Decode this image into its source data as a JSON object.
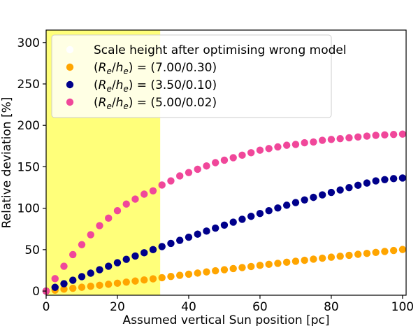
{
  "chart_data": {
    "type": "scatter",
    "xlabel": "Assumed vertical Sun position [pc]",
    "ylabel": "Relative deviation [%]",
    "xlim": [
      0,
      101
    ],
    "ylim": [
      -5,
      315
    ],
    "xticks": [
      0,
      20,
      40,
      60,
      80,
      100
    ],
    "yticks": [
      0,
      50,
      100,
      150,
      200,
      250,
      300
    ],
    "grid": false,
    "legend_position": "top-left",
    "highlight_region": {
      "x_range": [
        0,
        32
      ],
      "color": "#ffff7a"
    },
    "legend_title": "Scale height after optimising wrong model",
    "series": [
      {
        "name": "(Re/he) = (7.00/0.30)",
        "label_parts": [
          "(",
          "R",
          "e",
          "/",
          "h",
          "e",
          ") = (7.00/0.30)"
        ],
        "color": "#ffa500",
        "x": [
          0,
          2.5,
          5,
          7.5,
          10,
          12.5,
          15,
          17.5,
          20,
          22.5,
          25,
          27.5,
          30,
          32.5,
          35,
          37.5,
          40,
          42.5,
          45,
          47.5,
          50,
          52.5,
          55,
          57.5,
          60,
          62.5,
          65,
          67.5,
          70,
          72.5,
          75,
          77.5,
          80,
          82.5,
          85,
          87.5,
          90,
          92.5,
          95,
          97.5,
          100
        ],
        "y": [
          0,
          1.1,
          2.3,
          3.4,
          4.6,
          5.8,
          7.0,
          8.2,
          9.5,
          10.8,
          12.1,
          13.4,
          14.8,
          16.2,
          17.6,
          19.0,
          20.4,
          21.7,
          23.1,
          24.5,
          25.8,
          27.1,
          28.4,
          29.7,
          31.0,
          32.3,
          33.5,
          34.8,
          36.0,
          37.2,
          38.5,
          39.7,
          40.9,
          42.0,
          43.2,
          44.4,
          45.5,
          46.7,
          47.8,
          49.0,
          50.2
        ]
      },
      {
        "name": "(Re/he) = (3.50/0.10)",
        "label_parts": [
          "(",
          "R",
          "e",
          "/",
          "h",
          "e",
          ") = (3.50/0.10)"
        ],
        "color": "#00008b",
        "x": [
          0,
          2.5,
          5,
          7.5,
          10,
          12.5,
          15,
          17.5,
          20,
          22.5,
          25,
          27.5,
          30,
          32.5,
          35,
          37.5,
          40,
          42.5,
          45,
          47.5,
          50,
          52.5,
          55,
          57.5,
          60,
          62.5,
          65,
          67.5,
          70,
          72.5,
          75,
          77.5,
          80,
          82.5,
          85,
          87.5,
          90,
          92.5,
          95,
          97.5,
          100
        ],
        "y": [
          0,
          4.5,
          8.9,
          13.1,
          17.4,
          21.6,
          25.8,
          30.0,
          34.2,
          38.3,
          42.3,
          46.2,
          50.0,
          53.7,
          57.5,
          61.2,
          65.0,
          68.7,
          72.4,
          76.0,
          79.6,
          83.2,
          86.7,
          90.2,
          93.6,
          97.0,
          100.3,
          103.6,
          106.8,
          110.0,
          113.1,
          116.1,
          119.1,
          122.0,
          124.9,
          127.7,
          130.4,
          133.0,
          134.5,
          135.7,
          136.5
        ]
      },
      {
        "name": "(Re/he) = (5.00/0.02)",
        "label_parts": [
          "(",
          "R",
          "e",
          "/",
          "h",
          "e",
          ") = (5.00/0.02)"
        ],
        "color": "#f0479a",
        "x": [
          0,
          2.5,
          5,
          7.5,
          10,
          12.5,
          15,
          17.5,
          20,
          22.5,
          25,
          27.5,
          30,
          32.5,
          35,
          37.5,
          40,
          42.5,
          45,
          47.5,
          50,
          52.5,
          55,
          57.5,
          60,
          62.5,
          65,
          67.5,
          70,
          72.5,
          75,
          77.5,
          80,
          82.5,
          85,
          87.5,
          90,
          92.5,
          95,
          97.5,
          100
        ],
        "y": [
          0,
          15,
          30,
          44,
          56,
          68,
          79,
          88,
          97,
          105,
          111,
          117,
          121,
          128,
          133,
          139,
          143,
          147,
          151,
          155,
          158,
          161,
          164,
          167,
          170,
          172,
          174,
          176,
          177,
          179,
          180,
          182,
          183,
          184,
          185,
          186,
          187,
          188,
          188.5,
          189,
          189.5
        ]
      }
    ]
  }
}
